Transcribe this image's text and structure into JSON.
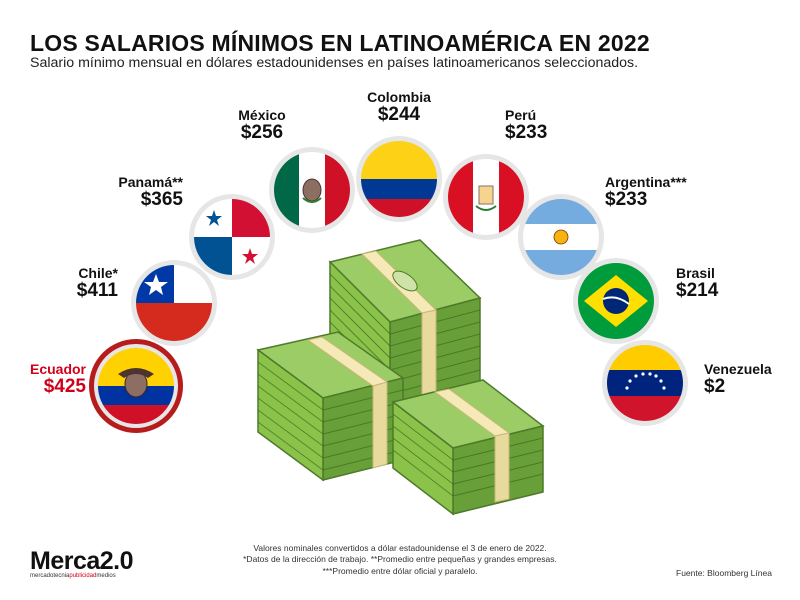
{
  "title": "LOS SALARIOS MÍNIMOS EN LATINOAMÉRICA EN 2022",
  "subtitle": "Salario mínimo mensual en dólares estadounidenses en países latinoamericanos seleccionados.",
  "chart_data": {
    "type": "table",
    "title": "LOS SALARIOS MÍNIMOS EN LATINOAMÉRICA EN 2022",
    "subtitle": "Salario mínimo mensual en dólares estadounidenses en países latinoamericanos seleccionados.",
    "categories": [
      "Ecuador",
      "Chile*",
      "Panamá**",
      "México",
      "Colombia",
      "Perú",
      "Argentina***",
      "Brasil",
      "Venezuela"
    ],
    "values": [
      425,
      411,
      365,
      256,
      244,
      233,
      233,
      214,
      2
    ],
    "value_labels": [
      "$425",
      "$411",
      "$365",
      "$256",
      "$244",
      "$233",
      "$233",
      "$214",
      "$2"
    ],
    "highlight": "Ecuador",
    "highlight_color": "#d0021b"
  },
  "countries": [
    {
      "name": "Ecuador",
      "value": "$425",
      "flag": "ecuador-flag"
    },
    {
      "name": "Chile*",
      "value": "$411",
      "flag": "chile-flag"
    },
    {
      "name": "Panamá**",
      "value": "$365",
      "flag": "panama-flag"
    },
    {
      "name": "México",
      "value": "$256",
      "flag": "mexico-flag"
    },
    {
      "name": "Colombia",
      "value": "$244",
      "flag": "colombia-flag"
    },
    {
      "name": "Perú",
      "value": "$233",
      "flag": "peru-flag"
    },
    {
      "name": "Argentina***",
      "value": "$233",
      "flag": "argentina-flag"
    },
    {
      "name": "Brasil",
      "value": "$214",
      "flag": "brasil-flag"
    },
    {
      "name": "Venezuela",
      "value": "$2",
      "flag": "venezuela-flag"
    }
  ],
  "notes": [
    "Valores nominales convertidos a dólar estadounidense el 3 de enero de 2022.",
    "*Datos de la dirección de trabajo. **Promedio entre pequeñas y grandes empresas.",
    "***Promedio entre dólar oficial y paralelo."
  ],
  "source": "Fuente: Bloomberg Línea",
  "logo": {
    "main_a": "Merca",
    "main_b": "2.0",
    "tag_a": "mercadotecnia",
    "tag_b": "publicidad",
    "tag_c": "medios"
  },
  "colors": {
    "highlight": "#d0021b",
    "money_green": "#7cb342",
    "circle_bg": "#e6e6e6"
  }
}
